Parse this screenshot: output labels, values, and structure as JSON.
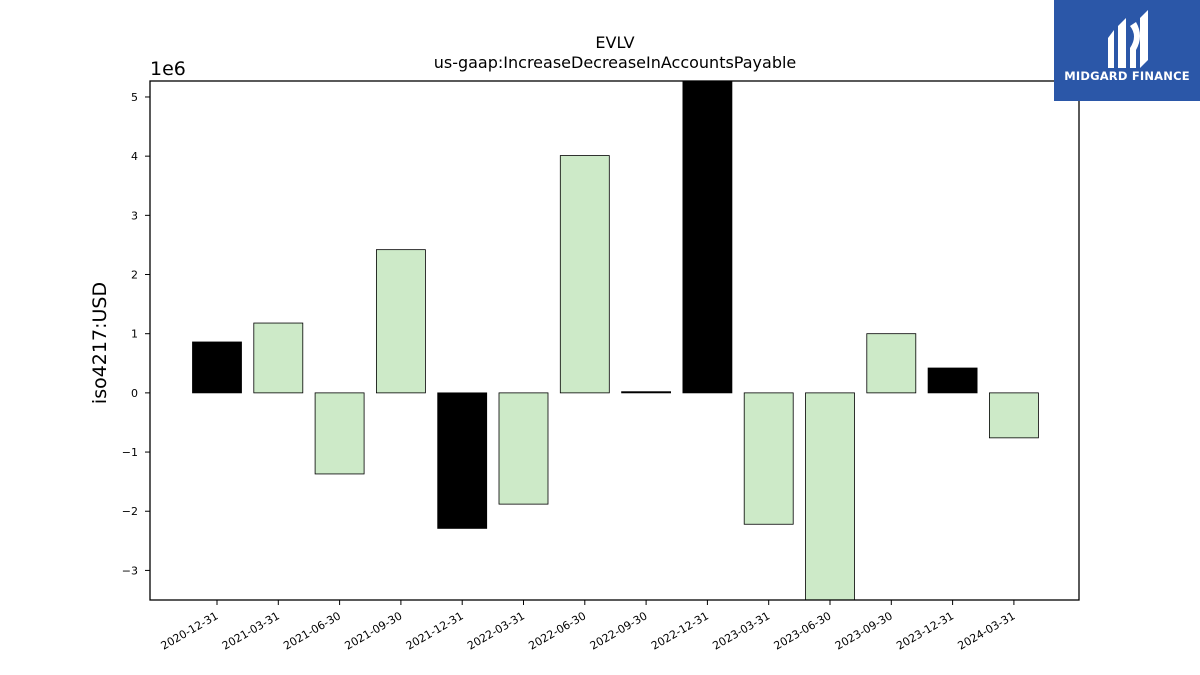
{
  "chart_data": {
    "type": "bar",
    "title": "EVLV",
    "subtitle": "us-gaap:IncreaseDecreaseInAccountsPayable",
    "ylabel": "iso4217:USD",
    "xlabel": "",
    "offset_label": "1e6",
    "y_scale": 1000000,
    "ylim": [
      -3500000,
      5270000
    ],
    "yticks": [
      -3,
      -2,
      -1,
      0,
      1,
      2,
      3,
      4,
      5
    ],
    "categories": [
      "2020-12-31",
      "2021-03-31",
      "2021-06-30",
      "2021-09-30",
      "2021-12-31",
      "2022-03-31",
      "2022-06-30",
      "2022-09-30",
      "2022-12-31",
      "2023-03-31",
      "2023-06-30",
      "2023-09-30",
      "2023-12-31",
      "2024-03-31"
    ],
    "values": [
      860000,
      1180000,
      -1370000,
      2420000,
      -2290000,
      -1880000,
      4010000,
      20000,
      5270000,
      -2220000,
      -3500000,
      1000000,
      420000,
      -760000
    ],
    "bar_colors": [
      "#000000",
      "#cdeac8",
      "#cdeac8",
      "#cdeac8",
      "#000000",
      "#cdeac8",
      "#cdeac8",
      "#000000",
      "#000000",
      "#cdeac8",
      "#cdeac8",
      "#cdeac8",
      "#000000",
      "#cdeac8"
    ],
    "grid": false,
    "legend": "none"
  },
  "brand": {
    "name": "MIDGARD FINANCE",
    "bg_color": "#2b57a8",
    "logo_icon": "midgard-logo-icon"
  }
}
